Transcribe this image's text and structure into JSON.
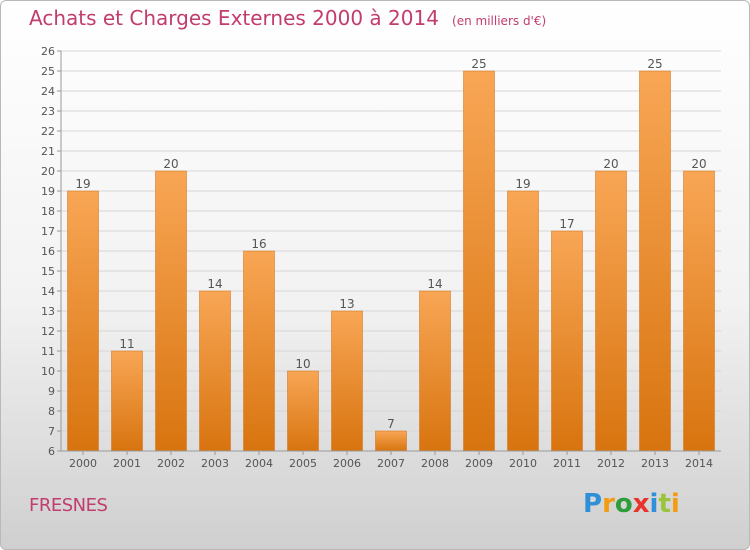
{
  "title": "Achats et Charges Externes 2000 à 2014",
  "unit": "(en milliers d'€)",
  "commune": "FRESNES",
  "logo": {
    "text": "Proxiti",
    "letter_colors": [
      "#2f8fd8",
      "#f39c12",
      "#2e9d3a",
      "#e8332a",
      "#2f8fd8",
      "#9ac43c",
      "#f39c12"
    ]
  },
  "colors": {
    "bar_top": "#f8a655",
    "bar_bottom": "#d8740f",
    "text": "#555555",
    "grid": "#d6d6d6",
    "axis": "#999999"
  },
  "chart_data": {
    "type": "bar",
    "categories": [
      "2000",
      "2001",
      "2002",
      "2003",
      "2004",
      "2005",
      "2006",
      "2007",
      "2008",
      "2009",
      "2010",
      "2011",
      "2012",
      "2013",
      "2014"
    ],
    "values": [
      19,
      11,
      20,
      14,
      16,
      10,
      13,
      7,
      14,
      25,
      19,
      17,
      20,
      25,
      20
    ],
    "title": "Achats et Charges Externes 2000 à 2014",
    "ylabel": "",
    "xlabel": "",
    "ylim": [
      6,
      26
    ],
    "yticks": [
      6,
      7,
      8,
      9,
      10,
      11,
      12,
      13,
      14,
      15,
      16,
      17,
      18,
      19,
      20,
      21,
      22,
      23,
      24,
      25,
      26
    ],
    "grid": true,
    "data_labels": true
  }
}
